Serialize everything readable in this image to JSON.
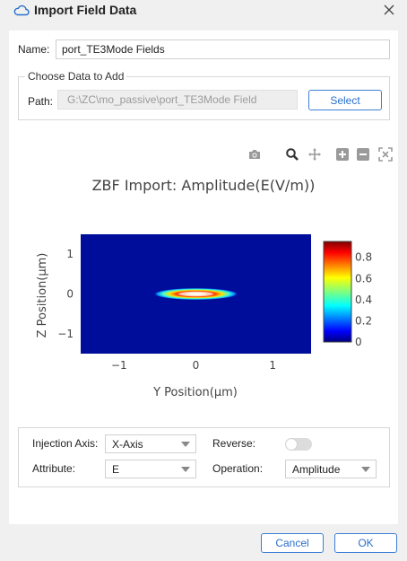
{
  "window": {
    "title": "Import Field Data"
  },
  "name": {
    "label": "Name:",
    "value": "port_TE3Mode Fields"
  },
  "data_group": {
    "title": "Choose Data to Add",
    "path_label": "Path:",
    "path_value": "G:\\ZC\\mo_passive\\port_TE3Mode Field",
    "select_label": "Select"
  },
  "toolbar": {
    "icons": [
      "camera-icon",
      "zoom-icon",
      "pan-icon",
      "zoom-in-icon",
      "zoom-out-icon",
      "reset-axes-icon"
    ]
  },
  "chart_data": {
    "type": "heatmap",
    "title": "ZBF Import: Amplitude(E(V/m))",
    "xlabel": "Y Position(μm)",
    "ylabel": "Z Position(μm)",
    "xlim": [
      -1.5,
      1.5
    ],
    "ylim": [
      -1.5,
      1.5
    ],
    "x_ticks": [
      "−1",
      "0",
      "1"
    ],
    "y_ticks": [
      "1",
      "0",
      "−1"
    ],
    "colorbar": {
      "range": [
        0,
        0.95
      ],
      "ticks": [
        "0.8",
        "0.6",
        "0.4",
        "0.2",
        "0"
      ],
      "colors": [
        "#00007f",
        "#0000ff",
        "#00ffff",
        "#7fff7f",
        "#ffff00",
        "#ff0000",
        "#7f0000"
      ]
    },
    "mode": {
      "center_y": 0,
      "center_z": 0,
      "width_y": 0.55,
      "width_z": 0.12,
      "peak": 0.95
    }
  },
  "settings": {
    "injection_axis_label": "Injection Axis:",
    "injection_axis_value": "X-Axis",
    "reverse_label": "Reverse:",
    "attribute_label": "Attribute:",
    "attribute_value": "E",
    "operation_label": "Operation:",
    "operation_value": "Amplitude"
  },
  "footer": {
    "cancel_label": "Cancel",
    "ok_label": "OK"
  },
  "colors": {
    "accent": "#3c7fd6",
    "background": "#f0f0f0"
  }
}
